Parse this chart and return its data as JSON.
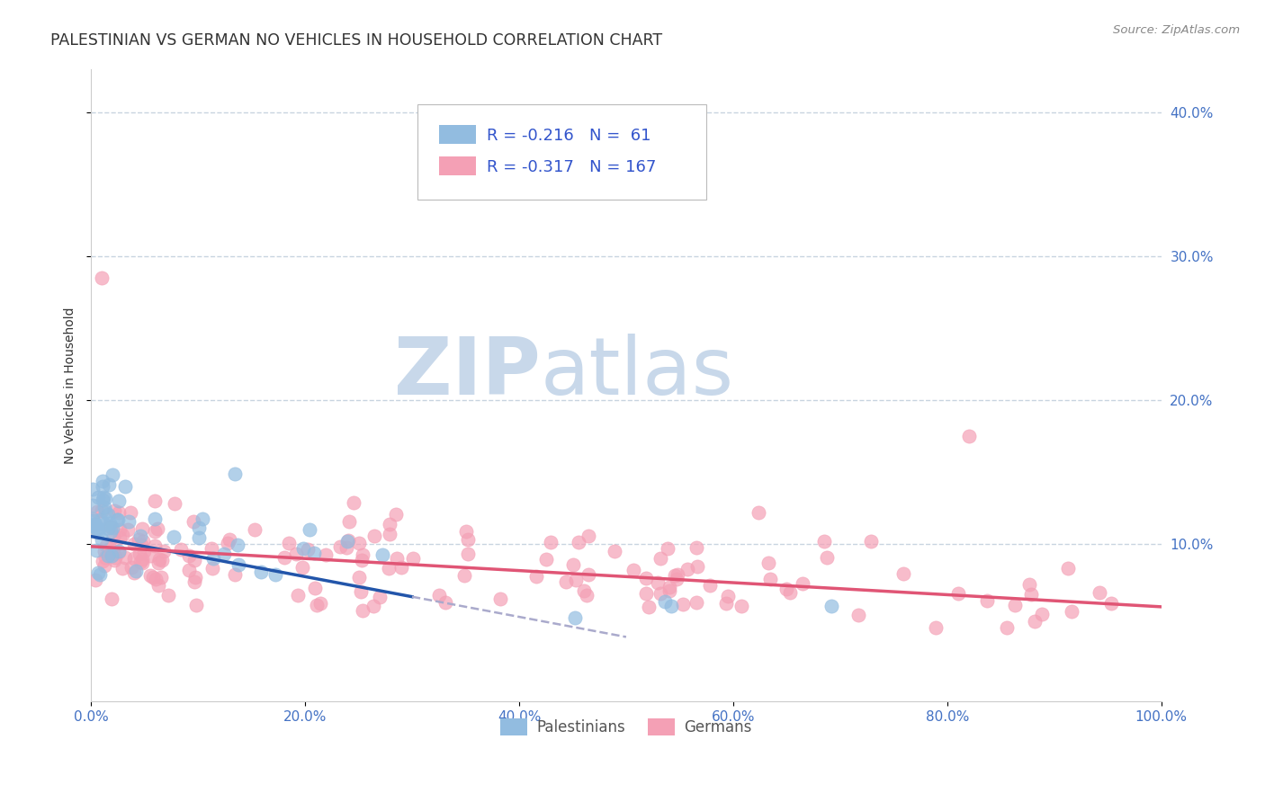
{
  "title": "PALESTINIAN VS GERMAN NO VEHICLES IN HOUSEHOLD CORRELATION CHART",
  "source_text": "Source: ZipAtlas.com",
  "ylabel": "No Vehicles in Household",
  "xlim": [
    0,
    100
  ],
  "ylim": [
    -1,
    43
  ],
  "xtick_labels": [
    "0.0%",
    "20.0%",
    "40.0%",
    "60.0%",
    "80.0%",
    "100.0%"
  ],
  "xtick_values": [
    0,
    20,
    40,
    60,
    80,
    100
  ],
  "ytick_labels": [
    "10.0%",
    "20.0%",
    "30.0%",
    "40.0%"
  ],
  "ytick_values": [
    10,
    20,
    30,
    40
  ],
  "palestinian_color": "#92bce0",
  "german_color": "#f4a0b5",
  "palestinian_line_color": "#2255aa",
  "german_line_color": "#e05575",
  "trend_dash_color": "#aaaacc",
  "legend_R_pal": "R = -0.216",
  "legend_N_pal": "N =  61",
  "legend_R_ger": "R = -0.317",
  "legend_N_ger": "N = 167",
  "legend_label_pal": "Palestinians",
  "legend_label_ger": "Germans",
  "watermark_zip": "ZIP",
  "watermark_atlas": "atlas",
  "watermark_color": "#c8d8ea",
  "background_color": "#ffffff",
  "grid_color": "#c8d4e0",
  "title_color": "#333333",
  "axis_label_color": "#333333",
  "tick_color_x": "#4472c4",
  "tick_color_y": "#4472c4"
}
